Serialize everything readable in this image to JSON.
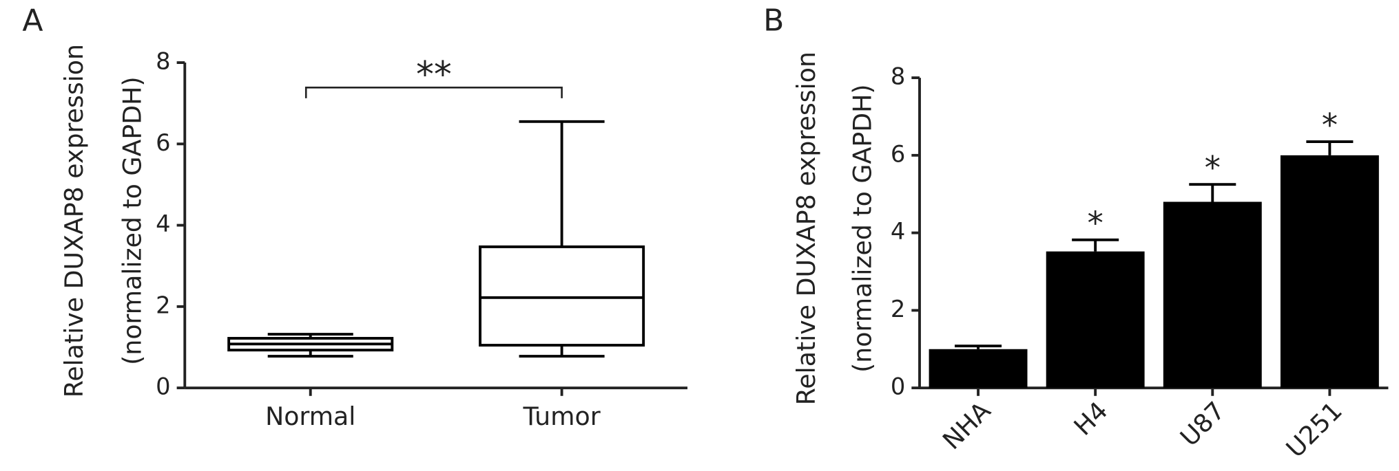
{
  "chart_data": [
    {
      "type": "box",
      "panel_label": "A",
      "y_label": [
        "Relative DUXAP8 expression",
        "(normalized to GAPDH)"
      ],
      "categories": [
        "Normal",
        "Tumor"
      ],
      "boxes": [
        {
          "min": 0.78,
          "q1": 0.93,
          "median": 1.08,
          "q3": 1.22,
          "max": 1.32
        },
        {
          "min": 0.78,
          "q1": 1.05,
          "median": 2.22,
          "q3": 3.47,
          "max": 6.55
        }
      ],
      "annotation": "**",
      "color": "#000000",
      "ylim": [
        0,
        8
      ],
      "yticks": [
        0,
        2,
        4,
        6,
        8
      ]
    },
    {
      "type": "bar",
      "panel_label": "B",
      "y_label": [
        "Relative DUXAP8 expression",
        "(normalized to GAPDH)"
      ],
      "categories": [
        "NHA",
        "H4",
        "U87",
        "U251"
      ],
      "values": [
        1.0,
        3.52,
        4.8,
        6.0
      ],
      "errors": [
        0.08,
        0.3,
        0.45,
        0.35
      ],
      "annotations": [
        null,
        "*",
        "*",
        "*"
      ],
      "color": "#000000",
      "ylim": [
        0,
        8
      ],
      "yticks": [
        0,
        2,
        4,
        6,
        8
      ]
    }
  ]
}
